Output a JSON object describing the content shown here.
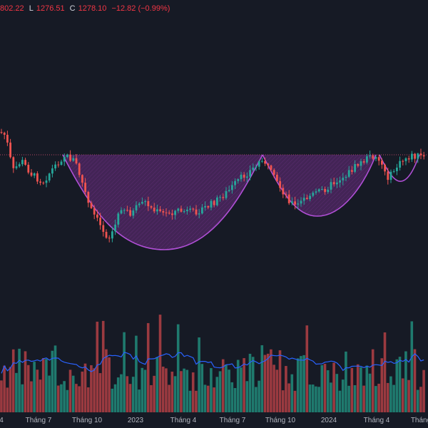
{
  "legend": {
    "high_value": "802.22",
    "low_label": "L",
    "low_value": "1276.51",
    "close_label": "C",
    "close_value": "1278.10",
    "change": "−12.82 (−0.99%)"
  },
  "colors": {
    "background": "#161a25",
    "up": "#26a69a",
    "down": "#ef5350",
    "pattern_stroke": "#b04fd6",
    "pattern_fill": "#6a2d7f",
    "volume_ma": "#2962ff",
    "resistance": "#d0506e"
  },
  "x_axis": {
    "labels": [
      "4",
      "Tháng 7",
      "Tháng 10",
      "2023",
      "Tháng 4",
      "Tháng 7",
      "Tháng 10",
      "2024",
      "Tháng 4",
      "Tháng"
    ]
  },
  "chart_data": {
    "type": "candlestick",
    "title": "",
    "periods": [
      "4",
      "Tháng 7",
      "Tháng 10",
      "2023",
      "Tháng 4",
      "Tháng 7",
      "Tháng 10",
      "2024",
      "Tháng 4",
      "Tháng"
    ],
    "last_bar": {
      "low": 1276.51,
      "close": 1278.1,
      "change": -12.82,
      "change_pct": -0.99
    },
    "annotations": [
      "cup-and-handle pattern (large cup)",
      "cup-and-handle pattern (second cup)",
      "handle",
      "horizontal resistance line"
    ],
    "volume_moving_average": true,
    "grid": false
  }
}
